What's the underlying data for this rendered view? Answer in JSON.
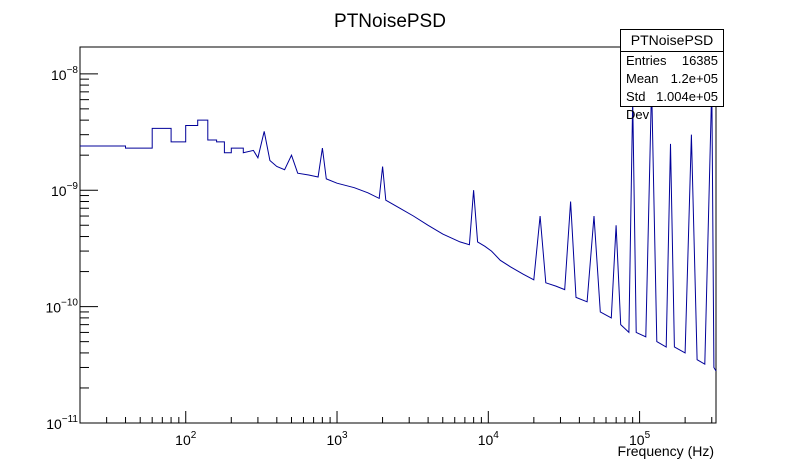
{
  "chart_data": {
    "type": "line",
    "title": "PTNoisePSD",
    "xlabel": "Frequency (Hz)",
    "ylabel": "",
    "x_scale": "log",
    "y_scale": "log",
    "xlim": [
      20,
      320000
    ],
    "ylim": [
      1e-11,
      1.7e-08
    ],
    "line_color": "#000099",
    "x_ticks": [
      {
        "value": 100,
        "base": "10",
        "exp": "2"
      },
      {
        "value": 1000,
        "base": "10",
        "exp": "3"
      },
      {
        "value": 10000,
        "base": "10",
        "exp": "4"
      },
      {
        "value": 100000,
        "base": "10",
        "exp": "5"
      }
    ],
    "y_ticks": [
      {
        "value": 1e-11,
        "base": "10",
        "exp": "−11"
      },
      {
        "value": 1e-10,
        "base": "10",
        "exp": "−10"
      },
      {
        "value": 1e-09,
        "base": "10",
        "exp": "−9"
      },
      {
        "value": 1e-08,
        "base": "10",
        "exp": "−8"
      }
    ],
    "series": [
      {
        "points": [
          [
            20,
            2.4e-09
          ],
          [
            40,
            2.4e-09
          ],
          [
            40,
            2.3e-09
          ],
          [
            60,
            2.3e-09
          ],
          [
            60,
            3.4e-09
          ],
          [
            80,
            3.4e-09
          ],
          [
            80,
            2.6e-09
          ],
          [
            100,
            2.6e-09
          ],
          [
            100,
            3.6e-09
          ],
          [
            120,
            3.6e-09
          ],
          [
            120,
            4e-09
          ],
          [
            140,
            4e-09
          ],
          [
            140,
            2.7e-09
          ],
          [
            160,
            2.7e-09
          ],
          [
            160,
            2.6e-09
          ],
          [
            180,
            2.6e-09
          ],
          [
            180,
            2.1e-09
          ],
          [
            200,
            2.1e-09
          ],
          [
            200,
            2.3e-09
          ],
          [
            240,
            2.3e-09
          ],
          [
            240,
            2.1e-09
          ],
          [
            280,
            2.2e-09
          ],
          [
            300,
            1.9e-09
          ],
          [
            330,
            3.2e-09
          ],
          [
            360,
            1.8e-09
          ],
          [
            400,
            1.6e-09
          ],
          [
            450,
            1.5e-09
          ],
          [
            500,
            2e-09
          ],
          [
            550,
            1.4e-09
          ],
          [
            650,
            1.35e-09
          ],
          [
            750,
            1.3e-09
          ],
          [
            800,
            2.3e-09
          ],
          [
            850,
            1.25e-09
          ],
          [
            1000,
            1.15e-09
          ],
          [
            1300,
            1.05e-09
          ],
          [
            1600,
            9.5e-10
          ],
          [
            1900,
            8.5e-10
          ],
          [
            2000,
            1.6e-09
          ],
          [
            2100,
            8.2e-10
          ],
          [
            2600,
            7e-10
          ],
          [
            3200,
            6e-10
          ],
          [
            4000,
            5e-10
          ],
          [
            5000,
            4.2e-10
          ],
          [
            6500,
            3.6e-10
          ],
          [
            7500,
            3.4e-10
          ],
          [
            8000,
            1e-09
          ],
          [
            8500,
            3.6e-10
          ],
          [
            9500,
            3.3e-10
          ],
          [
            10500,
            3e-10
          ],
          [
            12000,
            2.5e-10
          ],
          [
            14000,
            2.2e-10
          ],
          [
            17000,
            1.9e-10
          ],
          [
            20000,
            1.7e-10
          ],
          [
            22000,
            6e-10
          ],
          [
            24000,
            1.6e-10
          ],
          [
            28000,
            1.5e-10
          ],
          [
            32000,
            1.4e-10
          ],
          [
            35000,
            8e-10
          ],
          [
            38000,
            1.2e-10
          ],
          [
            45000,
            1.1e-10
          ],
          [
            50000,
            6e-10
          ],
          [
            55000,
            9e-11
          ],
          [
            65000,
            8e-11
          ],
          [
            70000,
            5e-10
          ],
          [
            75000,
            7e-11
          ],
          [
            85000,
            6e-11
          ],
          [
            90000,
            6e-09
          ],
          [
            95000,
            6e-11
          ],
          [
            110000,
            5.5e-11
          ],
          [
            120000,
            8e-09
          ],
          [
            130000,
            5e-11
          ],
          [
            150000,
            4.5e-11
          ],
          [
            160000,
            2.5e-09
          ],
          [
            170000,
            4.5e-11
          ],
          [
            200000,
            4e-11
          ],
          [
            220000,
            3e-09
          ],
          [
            240000,
            3.5e-11
          ],
          [
            270000,
            3.2e-11
          ],
          [
            300000,
            8e-09
          ],
          [
            310000,
            3e-11
          ],
          [
            320000,
            2.8e-11
          ]
        ]
      }
    ]
  },
  "stats": {
    "title": "PTNoisePSD",
    "rows": [
      {
        "label": "Entries",
        "value": "16385"
      },
      {
        "label": "Mean",
        "value": "1.2e+05"
      },
      {
        "label": "Std Dev",
        "value": "1.004e+05"
      }
    ]
  }
}
